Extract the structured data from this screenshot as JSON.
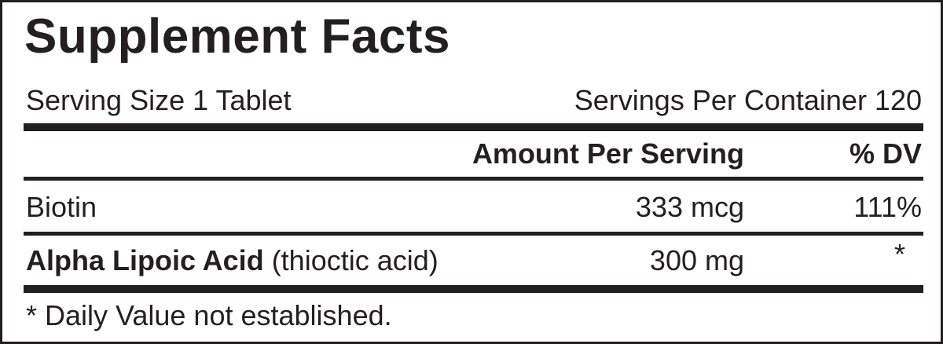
{
  "title": "Supplement Facts",
  "serving_size": "Serving Size 1 Tablet",
  "servings_per_container": "Servings Per Container 120",
  "headers": {
    "amount": "Amount Per Serving",
    "dv": "% DV"
  },
  "rows": [
    {
      "name": "Biotin",
      "note": "",
      "amount": "333 mcg",
      "dv": "111%"
    },
    {
      "name": "Alpha Lipoic Acid",
      "note": " (thioctic acid)",
      "amount": "300 mg",
      "dv": "*"
    }
  ],
  "footnote": "* Daily Value not established."
}
